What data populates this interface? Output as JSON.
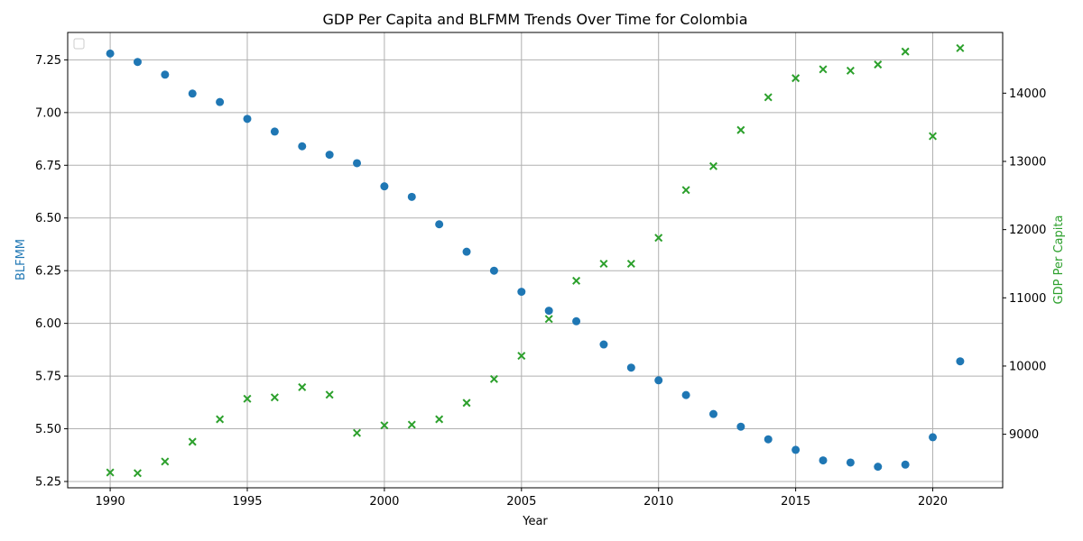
{
  "chart_data": {
    "type": "scatter",
    "title": "GDP Per Capita and BLFMM Trends Over Time for Colombia",
    "xlabel": "Year",
    "ylabel_left": "BLFMM",
    "ylabel_right": "GDP Per Capita",
    "xlim": [
      1988.45,
      2022.55
    ],
    "ylim_left": [
      5.22,
      7.38
    ],
    "ylim_right": [
      8215,
      14890
    ],
    "x_ticks": [
      1990,
      1995,
      2000,
      2005,
      2010,
      2015,
      2020
    ],
    "y_ticks_left": [
      5.25,
      5.5,
      5.75,
      6.0,
      6.25,
      6.5,
      6.75,
      7.0,
      7.25
    ],
    "y_ticks_right": [
      9000,
      10000,
      11000,
      12000,
      13000,
      14000
    ],
    "grid": true,
    "legend": "top-left (empty)",
    "x": [
      1990,
      1991,
      1992,
      1993,
      1994,
      1995,
      1996,
      1997,
      1998,
      1999,
      2000,
      2001,
      2002,
      2003,
      2004,
      2005,
      2006,
      2007,
      2008,
      2009,
      2010,
      2011,
      2012,
      2013,
      2014,
      2015,
      2016,
      2017,
      2018,
      2019,
      2020,
      2021
    ],
    "series": [
      {
        "name": "BLFMM",
        "axis": "left",
        "marker": "circle",
        "color": "#1f77b4",
        "values": [
          7.28,
          7.24,
          7.18,
          7.09,
          7.05,
          6.97,
          6.91,
          6.84,
          6.8,
          6.76,
          6.65,
          6.6,
          6.47,
          6.34,
          6.25,
          6.15,
          6.06,
          6.01,
          5.9,
          5.79,
          5.73,
          5.66,
          5.57,
          5.51,
          5.45,
          5.4,
          5.35,
          5.34,
          5.32,
          5.33,
          5.46,
          5.82
        ]
      },
      {
        "name": "GDP Per Capita",
        "axis": "right",
        "marker": "x",
        "color": "#2ca02c",
        "values": [
          8440,
          8430,
          8600,
          8890,
          9220,
          9520,
          9540,
          9690,
          9580,
          9020,
          9130,
          9140,
          9220,
          9460,
          9810,
          10150,
          10690,
          11250,
          11500,
          11500,
          11880,
          12580,
          12930,
          13460,
          13940,
          14220,
          14350,
          14330,
          14420,
          14610,
          13370,
          14660
        ]
      }
    ]
  }
}
